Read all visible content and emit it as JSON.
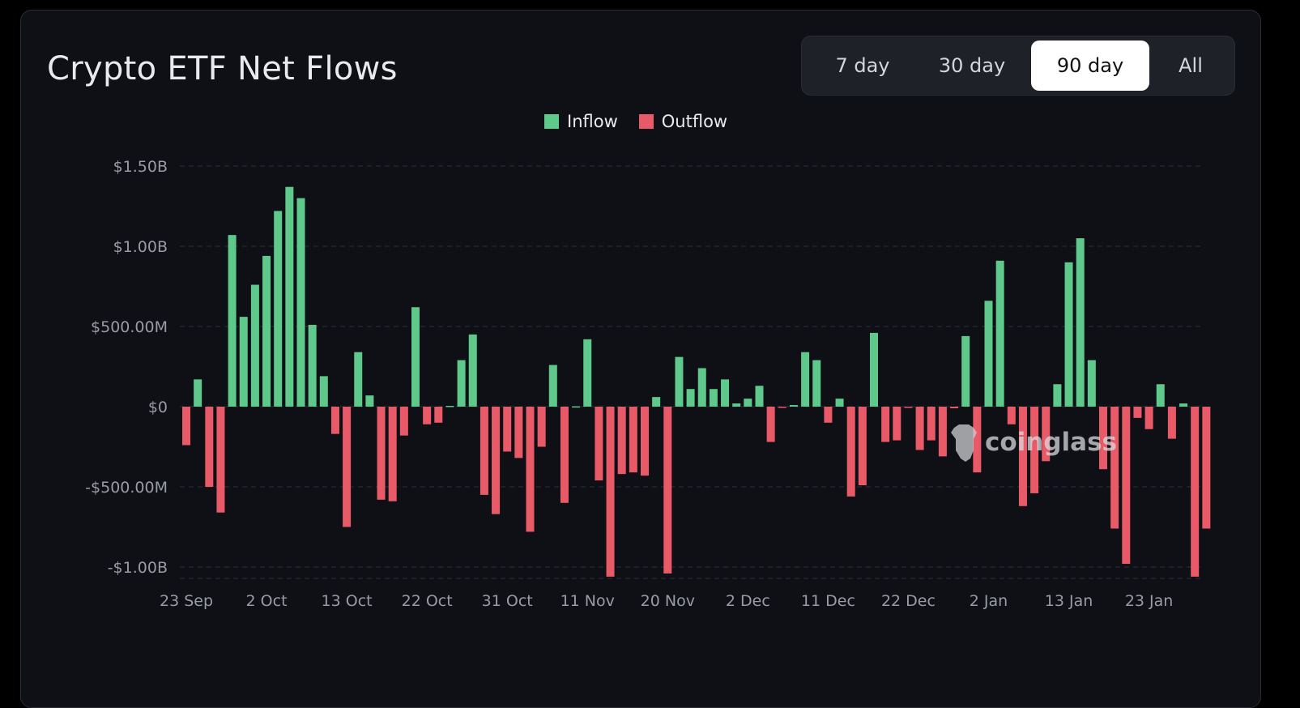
{
  "header": {
    "title": "Crypto ETF Net Flows"
  },
  "range_tabs": [
    {
      "label": "7 day",
      "active": false
    },
    {
      "label": "30 day",
      "active": false
    },
    {
      "label": "90 day",
      "active": true
    },
    {
      "label": "All",
      "active": false
    }
  ],
  "watermark": {
    "text": "coinglass",
    "icon": "coinglass-logo-icon"
  },
  "colors": {
    "inflow": "#5ec98a",
    "outflow": "#e85a67",
    "background": "#0e1016"
  },
  "chart_data": {
    "type": "bar",
    "title": "Crypto ETF Net Flows",
    "unit": "USD millions",
    "legend": [
      {
        "name": "Inflow",
        "color": "#5ec98a"
      },
      {
        "name": "Outflow",
        "color": "#e85a67"
      }
    ],
    "legend_position": "top-center",
    "grid": true,
    "ylim": [
      -1070,
      1500
    ],
    "y_ticks": [
      {
        "value": 1500,
        "label": "$1.50B"
      },
      {
        "value": 1000,
        "label": "$1.00B"
      },
      {
        "value": 500,
        "label": "$500.00M"
      },
      {
        "value": 0,
        "label": "$0"
      },
      {
        "value": -500,
        "label": "-$500.00M"
      },
      {
        "value": -1000,
        "label": "-$1.00B"
      }
    ],
    "x_ticks": [
      {
        "index": 0,
        "label": "23 Sep"
      },
      {
        "index": 7,
        "label": "2 Oct"
      },
      {
        "index": 14,
        "label": "13 Oct"
      },
      {
        "index": 21,
        "label": "22 Oct"
      },
      {
        "index": 28,
        "label": "31 Oct"
      },
      {
        "index": 35,
        "label": "11 Nov"
      },
      {
        "index": 42,
        "label": "20 Nov"
      },
      {
        "index": 49,
        "label": "2 Dec"
      },
      {
        "index": 56,
        "label": "11 Dec"
      },
      {
        "index": 63,
        "label": "22 Dec"
      },
      {
        "index": 70,
        "label": "2 Jan"
      },
      {
        "index": 77,
        "label": "13 Jan"
      },
      {
        "index": 84,
        "label": "23 Jan"
      }
    ],
    "values": [
      -240,
      170,
      -500,
      -660,
      1070,
      560,
      760,
      940,
      1220,
      1370,
      1300,
      510,
      190,
      -170,
      -750,
      340,
      70,
      -580,
      -590,
      -180,
      620,
      -110,
      -100,
      5,
      290,
      450,
      -550,
      -670,
      -280,
      -320,
      -780,
      -250,
      260,
      -600,
      2,
      420,
      -460,
      -1060,
      -420,
      -410,
      -430,
      60,
      -1040,
      310,
      110,
      240,
      110,
      170,
      20,
      50,
      130,
      -220,
      -5,
      10,
      340,
      290,
      -100,
      50,
      -560,
      -490,
      460,
      -220,
      -210,
      -5,
      -270,
      -210,
      -310,
      -10,
      440,
      -410,
      660,
      910,
      -110,
      -620,
      -540,
      -340,
      140,
      900,
      1050,
      290,
      -390,
      -760,
      -980,
      -70,
      -140,
      140,
      -200,
      20,
      -1060,
      -760
    ]
  }
}
